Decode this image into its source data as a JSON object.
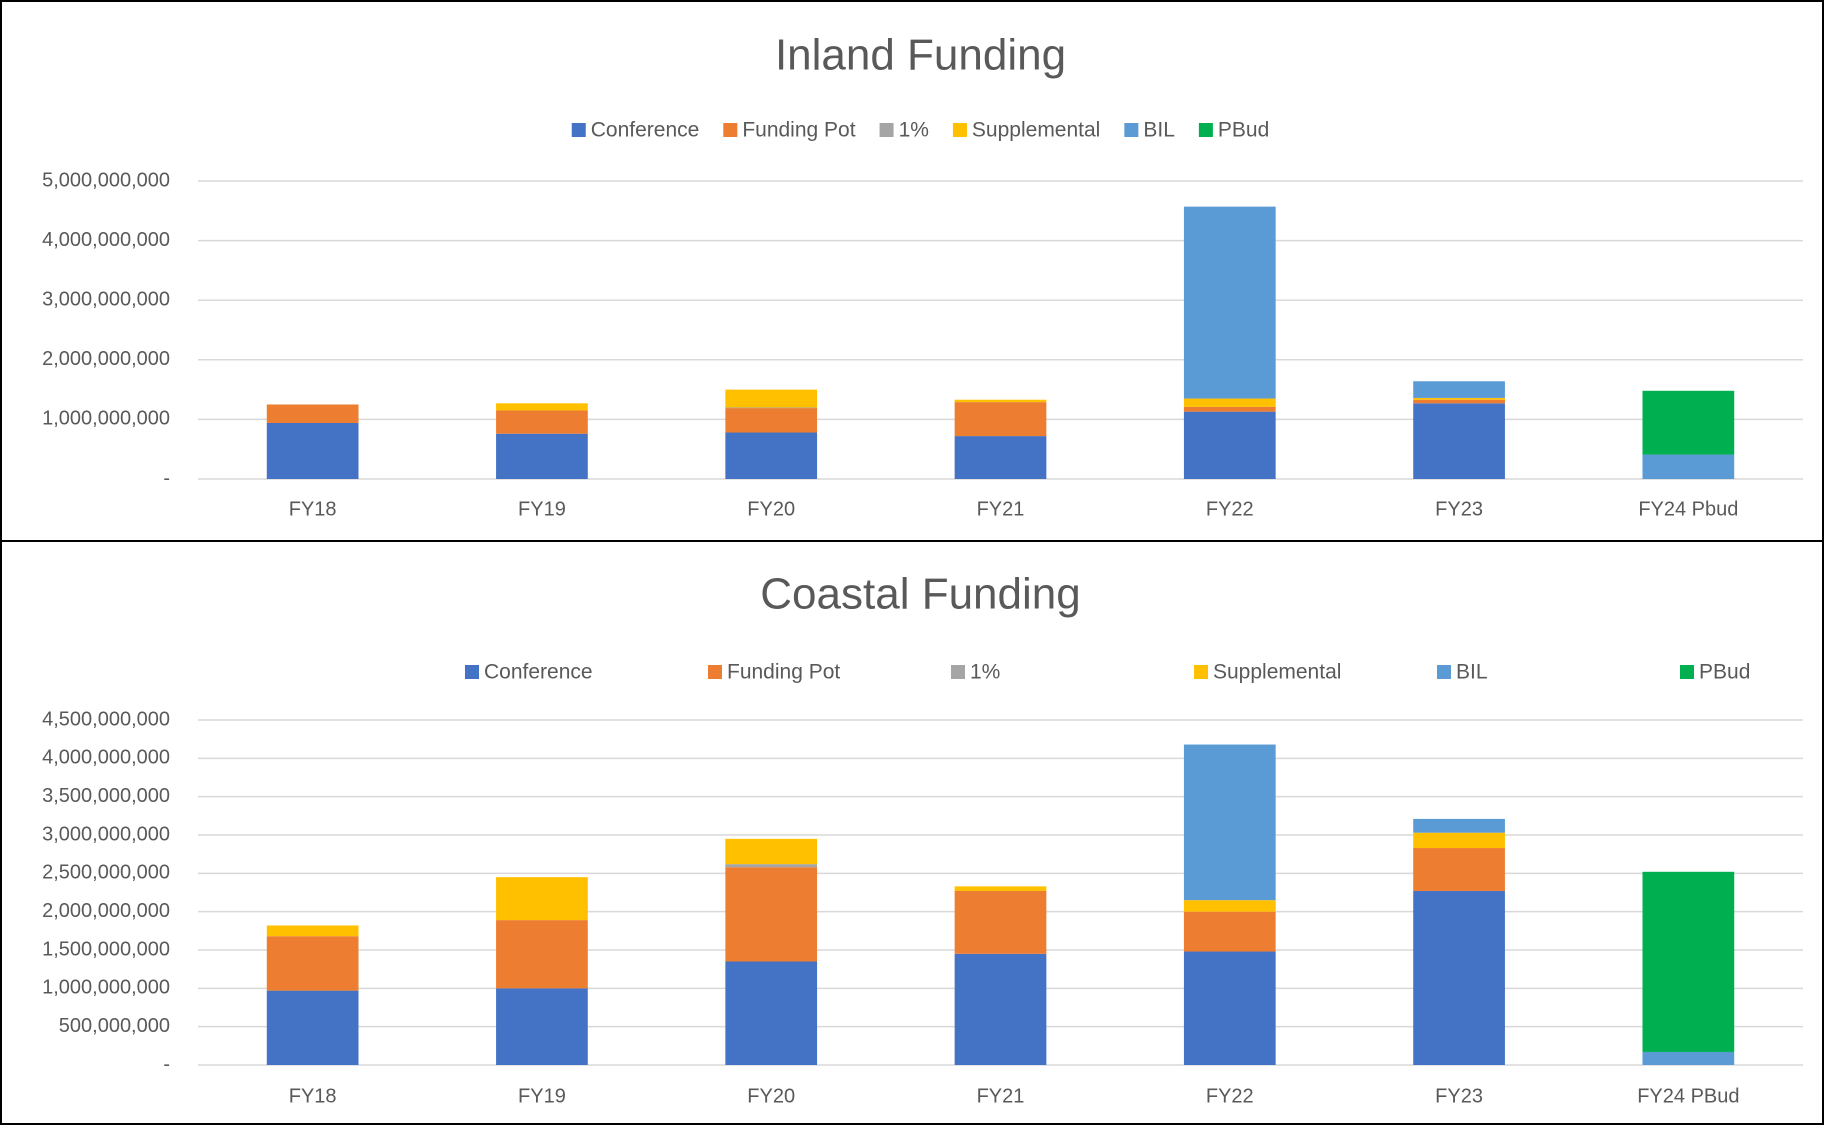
{
  "chart_data": [
    {
      "type": "bar",
      "stacked": true,
      "title": "Inland Funding",
      "categories": [
        "FY18",
        "FY19",
        "FY20",
        "FY21",
        "FY22",
        "FY23",
        "FY24 Pbud"
      ],
      "series": [
        {
          "name": "Conference",
          "color": "#4472c4",
          "values": [
            940000000,
            760000000,
            780000000,
            720000000,
            1130000000,
            1270000000,
            0
          ]
        },
        {
          "name": "Funding Pot",
          "color": "#ed7d31",
          "values": [
            310000000,
            390000000,
            410000000,
            570000000,
            80000000,
            60000000,
            0
          ]
        },
        {
          "name": "1%",
          "color": "#a5a5a5",
          "values": [
            0,
            0,
            10000000,
            0,
            0,
            0,
            0
          ]
        },
        {
          "name": "Supplemental",
          "color": "#ffc000",
          "values": [
            0,
            120000000,
            300000000,
            40000000,
            140000000,
            30000000,
            0
          ]
        },
        {
          "name": "BIL",
          "color": "#5b9bd5",
          "values": [
            0,
            0,
            0,
            0,
            3220000000,
            280000000,
            410000000
          ]
        },
        {
          "name": "PBud",
          "color": "#00b050",
          "values": [
            0,
            0,
            0,
            0,
            0,
            0,
            1070000000
          ]
        }
      ],
      "ylim": [
        0,
        5000000000
      ],
      "yticks": [
        {
          "value": 0,
          "label": "-"
        },
        {
          "value": 1000000000,
          "label": "1,000,000,000"
        },
        {
          "value": 2000000000,
          "label": "2,000,000,000"
        },
        {
          "value": 3000000000,
          "label": "3,000,000,000"
        },
        {
          "value": 4000000000,
          "label": "4,000,000,000"
        },
        {
          "value": 5000000000,
          "label": "5,000,000,000"
        }
      ],
      "grid": true,
      "legend": "top"
    },
    {
      "type": "bar",
      "stacked": true,
      "title": "Coastal Funding",
      "categories": [
        "FY18",
        "FY19",
        "FY20",
        "FY21",
        "FY22",
        "FY23",
        "FY24 PBud"
      ],
      "series": [
        {
          "name": "Conference",
          "color": "#4472c4",
          "values": [
            970000000,
            1000000000,
            1350000000,
            1450000000,
            1480000000,
            2270000000,
            0
          ]
        },
        {
          "name": "Funding Pot",
          "color": "#ed7d31",
          "values": [
            710000000,
            890000000,
            1230000000,
            820000000,
            520000000,
            560000000,
            0
          ]
        },
        {
          "name": "1%",
          "color": "#a5a5a5",
          "values": [
            0,
            0,
            40000000,
            0,
            0,
            0,
            0
          ]
        },
        {
          "name": "Supplemental",
          "color": "#ffc000",
          "values": [
            140000000,
            560000000,
            330000000,
            60000000,
            150000000,
            200000000,
            0
          ]
        },
        {
          "name": "BIL",
          "color": "#5b9bd5",
          "values": [
            0,
            0,
            0,
            0,
            2030000000,
            180000000,
            170000000
          ]
        },
        {
          "name": "PBud",
          "color": "#00b050",
          "values": [
            0,
            0,
            0,
            0,
            0,
            0,
            2350000000
          ]
        }
      ],
      "ylim": [
        0,
        4500000000
      ],
      "yticks": [
        {
          "value": 0,
          "label": "-"
        },
        {
          "value": 500000000,
          "label": "500,000,000"
        },
        {
          "value": 1000000000,
          "label": "1,000,000,000"
        },
        {
          "value": 1500000000,
          "label": "1,500,000,000"
        },
        {
          "value": 2000000000,
          "label": "2,000,000,000"
        },
        {
          "value": 2500000000,
          "label": "2,500,000,000"
        },
        {
          "value": 3000000000,
          "label": "3,000,000,000"
        },
        {
          "value": 3500000000,
          "label": "3,500,000,000"
        },
        {
          "value": 4000000000,
          "label": "4,000,000,000"
        },
        {
          "value": 4500000000,
          "label": "4,500,000,000"
        }
      ],
      "grid": true,
      "legend": "top"
    }
  ]
}
